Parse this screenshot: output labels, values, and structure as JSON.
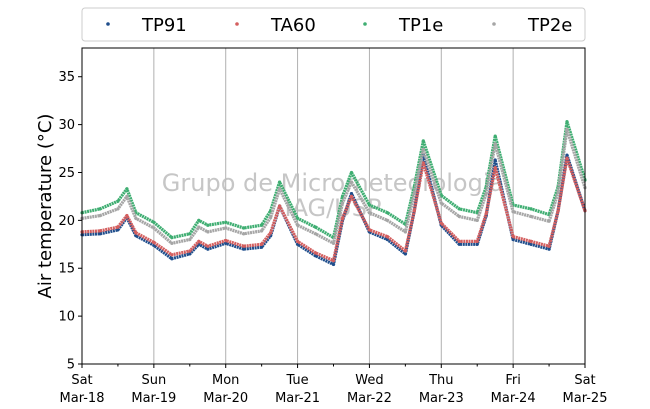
{
  "chart_data": {
    "type": "line",
    "ylabel": "Air temperature (°C)",
    "xlabel": "",
    "ylim": [
      5,
      38
    ],
    "yticks": [
      5,
      10,
      15,
      20,
      25,
      30,
      35
    ],
    "xlim": [
      "2023-03-18",
      "2023-03-25"
    ],
    "xticks": [
      {
        "day": "Sat",
        "date": "Mar-18"
      },
      {
        "day": "Sun",
        "date": "Mar-19"
      },
      {
        "day": "Mon",
        "date": "Mar-20"
      },
      {
        "day": "Tue",
        "date": "Mar-21"
      },
      {
        "day": "Wed",
        "date": "Mar-22"
      },
      {
        "day": "Thu",
        "date": "Mar-23"
      },
      {
        "day": "Fri",
        "date": "Mar-24"
      },
      {
        "day": "Sat",
        "date": "Mar-25"
      }
    ],
    "grid": "vertical",
    "legend_position": "top",
    "watermark": [
      "Grupo de Micrometeorologia",
      "IAG/USP"
    ],
    "series": [
      {
        "name": "TP91",
        "color": "#1f4e8c",
        "x": [
          "Mar-18 00:00",
          "Mar-18 06:00",
          "Mar-18 12:00",
          "Mar-18 15:00",
          "Mar-18 18:00",
          "Mar-19 00:00",
          "Mar-19 06:00",
          "Mar-19 12:00",
          "Mar-19 15:00",
          "Mar-19 18:00",
          "Mar-20 00:00",
          "Mar-20 06:00",
          "Mar-20 12:00",
          "Mar-20 15:00",
          "Mar-20 18:00",
          "Mar-21 00:00",
          "Mar-21 06:00",
          "Mar-21 12:00",
          "Mar-21 15:00",
          "Mar-21 18:00",
          "Mar-22 00:00",
          "Mar-22 06:00",
          "Mar-22 12:00",
          "Mar-22 15:00",
          "Mar-22 18:00",
          "Mar-23 00:00",
          "Mar-23 06:00",
          "Mar-23 12:00",
          "Mar-23 15:00",
          "Mar-23 18:00",
          "Mar-24 00:00",
          "Mar-24 06:00",
          "Mar-24 12:00",
          "Mar-24 15:00",
          "Mar-24 18:00",
          "Mar-25 00:00"
        ],
        "y": [
          18.5,
          18.6,
          19.0,
          20.3,
          18.4,
          17.4,
          16.0,
          16.5,
          17.5,
          17.0,
          17.6,
          17.0,
          17.2,
          18.4,
          21.5,
          17.5,
          16.3,
          15.4,
          20.0,
          22.8,
          18.8,
          18.0,
          16.5,
          21.0,
          26.8,
          19.5,
          17.5,
          17.5,
          20.5,
          26.3,
          18.0,
          17.5,
          17.0,
          21.0,
          26.8,
          21.0
        ]
      },
      {
        "name": "TA60",
        "color": "#d45f5f",
        "x": [
          "Mar-18 00:00",
          "Mar-18 06:00",
          "Mar-18 12:00",
          "Mar-18 15:00",
          "Mar-18 18:00",
          "Mar-19 00:00",
          "Mar-19 06:00",
          "Mar-19 12:00",
          "Mar-19 15:00",
          "Mar-19 18:00",
          "Mar-20 00:00",
          "Mar-20 06:00",
          "Mar-20 12:00",
          "Mar-20 15:00",
          "Mar-20 18:00",
          "Mar-21 00:00",
          "Mar-21 06:00",
          "Mar-21 12:00",
          "Mar-21 15:00",
          "Mar-21 18:00",
          "Mar-22 00:00",
          "Mar-22 06:00",
          "Mar-22 12:00",
          "Mar-22 15:00",
          "Mar-22 18:00",
          "Mar-23 00:00",
          "Mar-23 06:00",
          "Mar-23 12:00",
          "Mar-23 15:00",
          "Mar-23 18:00",
          "Mar-24 00:00",
          "Mar-24 06:00",
          "Mar-24 12:00",
          "Mar-24 15:00",
          "Mar-24 18:00",
          "Mar-25 00:00"
        ],
        "y": [
          18.8,
          18.9,
          19.3,
          20.5,
          18.7,
          17.7,
          16.4,
          16.8,
          17.8,
          17.3,
          17.9,
          17.3,
          17.5,
          18.7,
          21.5,
          17.8,
          16.6,
          15.8,
          20.2,
          22.5,
          19.0,
          18.3,
          16.8,
          21.0,
          26.0,
          19.7,
          17.8,
          17.8,
          20.7,
          25.5,
          18.3,
          17.8,
          17.3,
          21.0,
          26.5,
          21.0
        ]
      },
      {
        "name": "TP1e",
        "color": "#3fae72",
        "x": [
          "Mar-18 00:00",
          "Mar-18 06:00",
          "Mar-18 12:00",
          "Mar-18 15:00",
          "Mar-18 18:00",
          "Mar-19 00:00",
          "Mar-19 06:00",
          "Mar-19 12:00",
          "Mar-19 15:00",
          "Mar-19 18:00",
          "Mar-20 00:00",
          "Mar-20 06:00",
          "Mar-20 12:00",
          "Mar-20 15:00",
          "Mar-20 18:00",
          "Mar-21 00:00",
          "Mar-21 06:00",
          "Mar-21 12:00",
          "Mar-21 15:00",
          "Mar-21 18:00",
          "Mar-22 00:00",
          "Mar-22 06:00",
          "Mar-22 12:00",
          "Mar-22 15:00",
          "Mar-22 18:00",
          "Mar-23 00:00",
          "Mar-23 06:00",
          "Mar-23 12:00",
          "Mar-23 15:00",
          "Mar-23 18:00",
          "Mar-24 00:00",
          "Mar-24 06:00",
          "Mar-24 12:00",
          "Mar-24 15:00",
          "Mar-24 18:00",
          "Mar-25 00:00"
        ],
        "y": [
          20.8,
          21.2,
          22.0,
          23.3,
          20.8,
          19.8,
          18.2,
          18.6,
          20.0,
          19.5,
          19.8,
          19.2,
          19.5,
          21.0,
          24.0,
          20.2,
          19.3,
          18.2,
          22.5,
          25.0,
          21.6,
          20.8,
          19.6,
          23.5,
          28.3,
          22.6,
          21.2,
          20.8,
          23.5,
          28.8,
          21.6,
          21.2,
          20.6,
          23.5,
          30.3,
          24.2
        ]
      },
      {
        "name": "TP2e",
        "color": "#a6a6a6",
        "x": [
          "Mar-18 00:00",
          "Mar-18 06:00",
          "Mar-18 12:00",
          "Mar-18 15:00",
          "Mar-18 18:00",
          "Mar-19 00:00",
          "Mar-19 06:00",
          "Mar-19 12:00",
          "Mar-19 15:00",
          "Mar-19 18:00",
          "Mar-20 00:00",
          "Mar-20 06:00",
          "Mar-20 12:00",
          "Mar-20 15:00",
          "Mar-20 18:00",
          "Mar-21 00:00",
          "Mar-21 06:00",
          "Mar-21 12:00",
          "Mar-21 15:00",
          "Mar-21 18:00",
          "Mar-22 00:00",
          "Mar-22 06:00",
          "Mar-22 12:00",
          "Mar-22 15:00",
          "Mar-22 18:00",
          "Mar-23 00:00",
          "Mar-23 06:00",
          "Mar-23 12:00",
          "Mar-23 15:00",
          "Mar-23 18:00",
          "Mar-24 00:00",
          "Mar-24 06:00",
          "Mar-24 12:00",
          "Mar-24 15:00",
          "Mar-24 18:00",
          "Mar-25 00:00"
        ],
        "y": [
          20.2,
          20.5,
          21.2,
          22.5,
          20.2,
          19.2,
          17.6,
          18.0,
          19.3,
          18.8,
          19.2,
          18.6,
          18.9,
          20.3,
          23.3,
          19.5,
          18.6,
          17.6,
          21.8,
          24.0,
          20.8,
          20.0,
          18.8,
          22.8,
          27.4,
          21.8,
          20.4,
          20.0,
          22.8,
          28.0,
          20.9,
          20.4,
          19.9,
          22.9,
          29.5,
          23.4
        ]
      }
    ]
  }
}
